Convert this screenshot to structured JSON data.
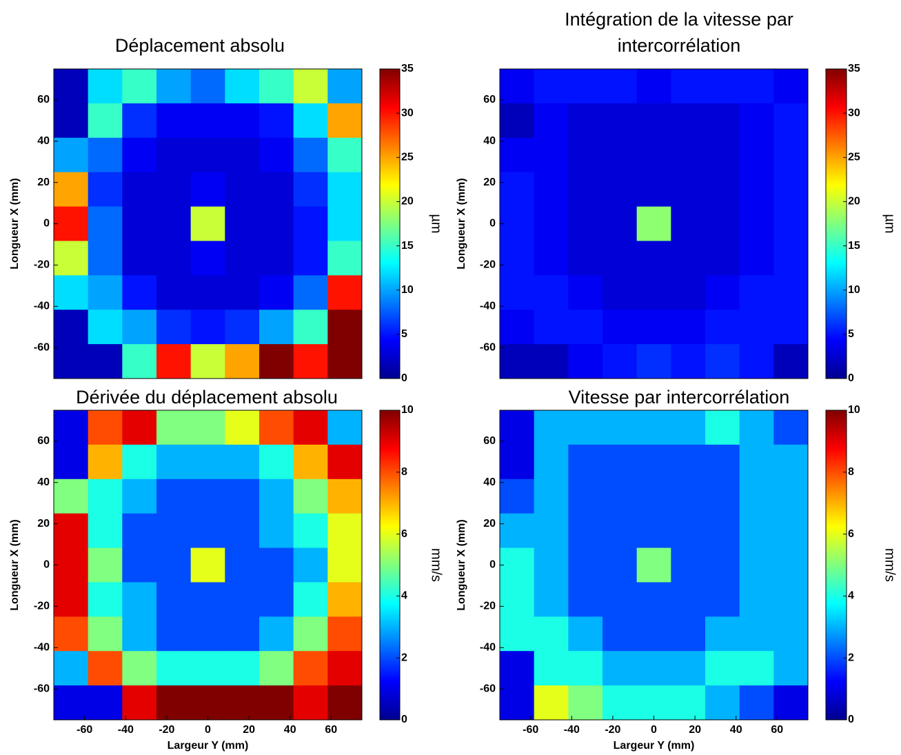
{
  "chart_data": [
    {
      "type": "heatmap",
      "title": "Déplacement absolu",
      "ylabel": "Longueur X (mm)",
      "colorbar_label": "µm",
      "colormap": "jet",
      "xlim": [
        -75,
        75
      ],
      "ylim": [
        -75,
        75
      ],
      "yticks": [
        -60,
        -40,
        -20,
        0,
        20,
        40,
        60
      ],
      "zlim": [
        0,
        35
      ],
      "zticks": [
        0,
        5,
        10,
        15,
        20,
        25,
        30,
        35
      ],
      "z": [
        [
          2,
          12,
          15,
          10,
          8,
          12,
          15,
          20,
          10
        ],
        [
          2,
          15,
          6,
          4,
          4,
          4,
          5,
          12,
          25
        ],
        [
          10,
          8,
          4,
          3,
          3,
          3,
          4,
          8,
          15
        ],
        [
          25,
          6,
          3,
          3,
          4,
          3,
          3,
          6,
          12
        ],
        [
          30,
          8,
          3,
          3,
          20,
          3,
          3,
          5,
          12
        ],
        [
          20,
          8,
          3,
          3,
          4,
          3,
          3,
          5,
          15
        ],
        [
          12,
          10,
          5,
          3,
          3,
          3,
          4,
          8,
          30
        ],
        [
          2,
          12,
          10,
          6,
          5,
          6,
          10,
          15,
          35
        ],
        [
          2,
          2,
          15,
          30,
          20,
          25,
          35,
          30,
          35
        ]
      ]
    },
    {
      "type": "heatmap",
      "title": [
        "Intégration de la vitesse par",
        "intercorrélation"
      ],
      "ylabel": "Longueur X (mm)",
      "colorbar_label": "µm",
      "colormap": "jet",
      "xlim": [
        -75,
        75
      ],
      "ylim": [
        -75,
        75
      ],
      "yticks": [
        -60,
        -40,
        -20,
        0,
        20,
        40,
        60
      ],
      "zlim": [
        0,
        35
      ],
      "zticks": [
        0,
        5,
        10,
        15,
        20,
        25,
        30,
        35
      ],
      "z": [
        [
          4,
          5,
          5,
          5,
          4,
          5,
          5,
          5,
          4
        ],
        [
          2,
          4,
          3,
          3,
          3,
          3,
          3,
          4,
          5
        ],
        [
          4,
          4,
          3,
          3,
          3,
          3,
          3,
          4,
          5
        ],
        [
          5,
          4,
          3,
          3,
          3,
          3,
          3,
          4,
          5
        ],
        [
          5,
          4,
          3,
          3,
          18,
          3,
          3,
          4,
          5
        ],
        [
          5,
          4,
          3,
          3,
          3,
          3,
          3,
          4,
          5
        ],
        [
          5,
          5,
          4,
          3,
          3,
          3,
          4,
          5,
          5
        ],
        [
          4,
          5,
          5,
          4,
          4,
          4,
          5,
          5,
          5
        ],
        [
          2,
          2,
          4,
          5,
          6,
          5,
          6,
          5,
          2
        ]
      ]
    },
    {
      "type": "heatmap",
      "title": "Dérivée du déplacement absolu",
      "xlabel": "Largeur Y (mm)",
      "ylabel": "Longueur X (mm)",
      "colorbar_label": "mm/s",
      "colormap": "jet",
      "xlim": [
        -75,
        75
      ],
      "ylim": [
        -75,
        75
      ],
      "xticks": [
        -60,
        -40,
        -20,
        0,
        20,
        40,
        60
      ],
      "yticks": [
        -60,
        -40,
        -20,
        0,
        20,
        40,
        60
      ],
      "zlim": [
        0,
        10
      ],
      "zticks": [
        0,
        2,
        4,
        6,
        8,
        10
      ],
      "z": [
        [
          1,
          8,
          9,
          5,
          5,
          6,
          8,
          9,
          3
        ],
        [
          1,
          7,
          4,
          3,
          3,
          3,
          4,
          7,
          9
        ],
        [
          5,
          4,
          3,
          2,
          2,
          2,
          3,
          5,
          7
        ],
        [
          9,
          4,
          2,
          2,
          2,
          2,
          3,
          4,
          6
        ],
        [
          9,
          5,
          2,
          2,
          6,
          2,
          2,
          3,
          6
        ],
        [
          9,
          4,
          3,
          2,
          2,
          2,
          2,
          4,
          7
        ],
        [
          8,
          5,
          3,
          2,
          2,
          2,
          3,
          5,
          8
        ],
        [
          3,
          8,
          5,
          4,
          4,
          4,
          5,
          8,
          9
        ],
        [
          1,
          1,
          9,
          10,
          10,
          10,
          10,
          9,
          10
        ]
      ]
    },
    {
      "type": "heatmap",
      "title": "Vitesse par intercorrélation",
      "xlabel": "Largeur Y (mm)",
      "ylabel": "Longueur X (mm)",
      "colorbar_label": "mm/s",
      "colormap": "jet",
      "xlim": [
        -75,
        75
      ],
      "ylim": [
        -75,
        75
      ],
      "xticks": [
        -60,
        -40,
        -20,
        0,
        20,
        40,
        60
      ],
      "yticks": [
        -60,
        -40,
        -20,
        0,
        20,
        40,
        60
      ],
      "zlim": [
        0,
        10
      ],
      "zticks": [
        0,
        2,
        4,
        6,
        8,
        10
      ],
      "z": [
        [
          1,
          3,
          3,
          3,
          3,
          3,
          4,
          3,
          2
        ],
        [
          1,
          3,
          2,
          2,
          2,
          2,
          2,
          3,
          3
        ],
        [
          2,
          3,
          2,
          2,
          2,
          2,
          2,
          3,
          3
        ],
        [
          3,
          3,
          2,
          2,
          2,
          2,
          2,
          3,
          3
        ],
        [
          4,
          3,
          2,
          2,
          5,
          2,
          2,
          3,
          3
        ],
        [
          4,
          3,
          2,
          2,
          2,
          2,
          2,
          3,
          3
        ],
        [
          4,
          4,
          3,
          2,
          2,
          2,
          3,
          3,
          3
        ],
        [
          1,
          4,
          4,
          3,
          3,
          3,
          4,
          4,
          3
        ],
        [
          1,
          6,
          5,
          4,
          4,
          4,
          3,
          2,
          1
        ]
      ]
    }
  ]
}
